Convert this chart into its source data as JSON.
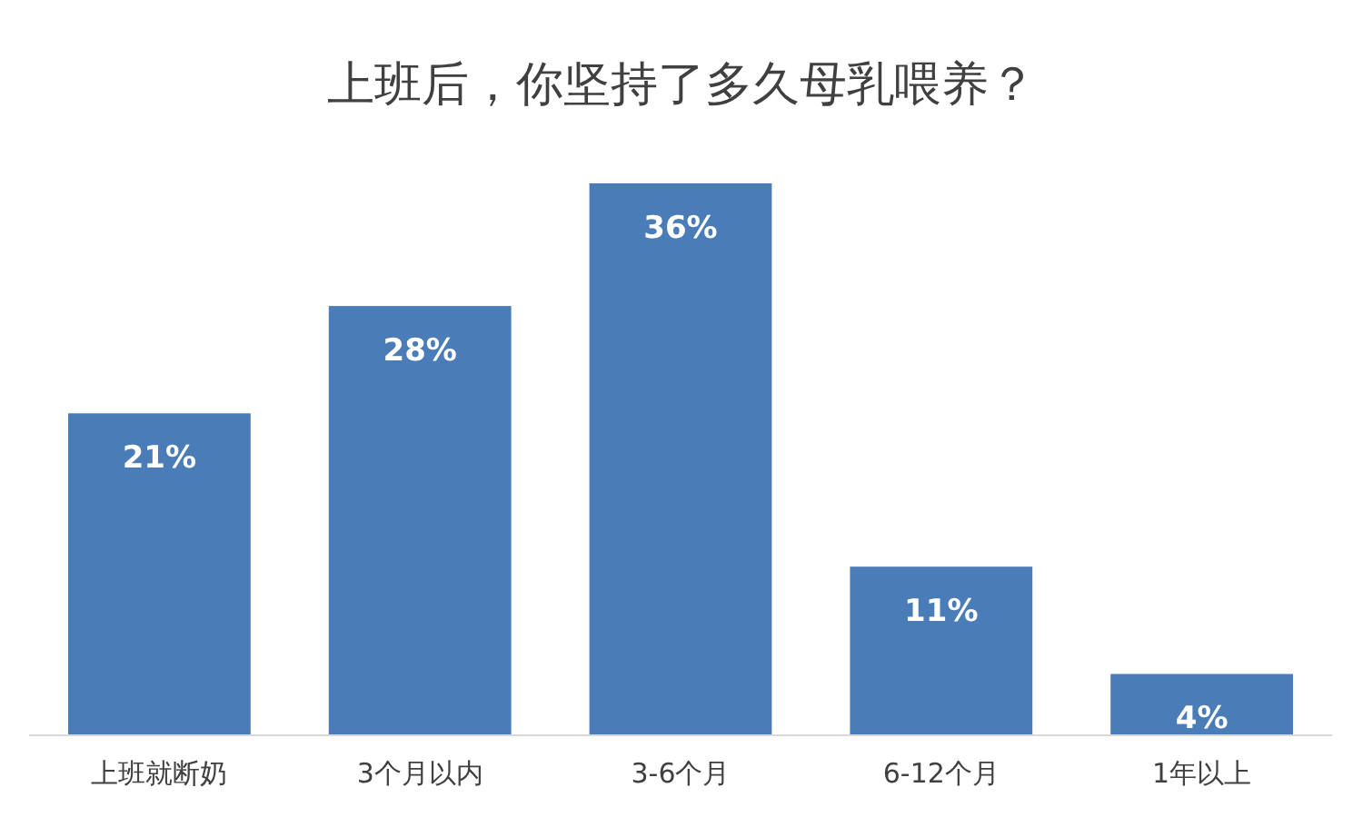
{
  "chart_data": {
    "type": "bar",
    "title": "上班后，你坚持了多久母乳喂养？",
    "categories": [
      "上班就断奶",
      "3个月以内",
      "3-6个月",
      "6-12个月",
      "1年以上"
    ],
    "values": [
      21,
      28,
      36,
      11,
      4
    ],
    "value_labels": [
      "21%",
      "28%",
      "36%",
      "11%",
      "4%"
    ],
    "color": "#4a7cb8"
  }
}
